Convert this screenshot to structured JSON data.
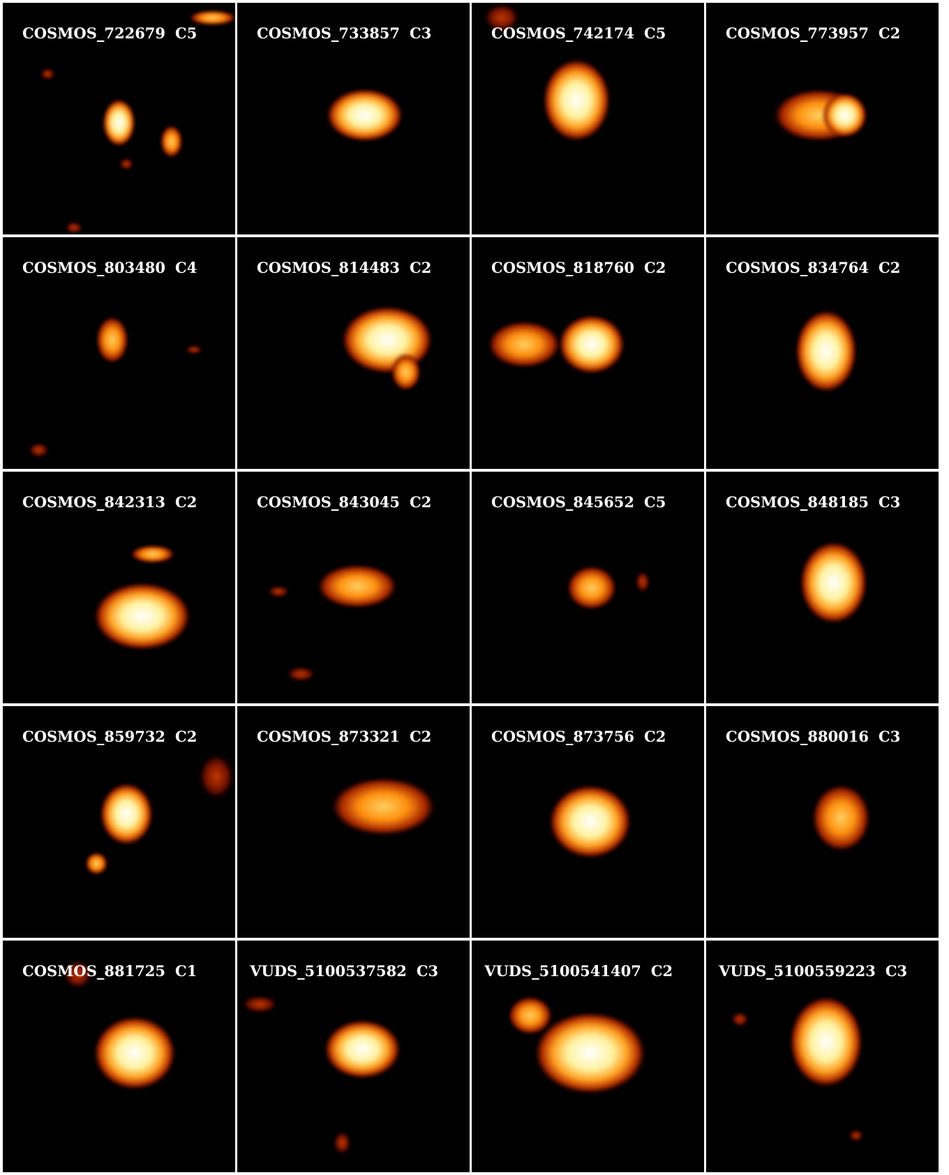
{
  "panels": [
    {
      "name": "COSMOS_722679",
      "class": "C5"
    },
    {
      "name": "COSMOS_733857",
      "class": "C3"
    },
    {
      "name": "COSMOS_742174",
      "class": "C5"
    },
    {
      "name": "COSMOS_773957",
      "class": "C2"
    },
    {
      "name": "COSMOS_803480",
      "class": "C4"
    },
    {
      "name": "COSMOS_814483",
      "class": "C2"
    },
    {
      "name": "COSMOS_818760",
      "class": "C2"
    },
    {
      "name": "COSMOS_834764",
      "class": "C2"
    },
    {
      "name": "COSMOS_842313",
      "class": "C2"
    },
    {
      "name": "COSMOS_843045",
      "class": "C2"
    },
    {
      "name": "COSMOS_845652",
      "class": "C5"
    },
    {
      "name": "COSMOS_848185",
      "class": "C3"
    },
    {
      "name": "COSMOS_859732",
      "class": "C2"
    },
    {
      "name": "COSMOS_873321",
      "class": "C2"
    },
    {
      "name": "COSMOS_873756",
      "class": "C2"
    },
    {
      "name": "COSMOS_880016",
      "class": "C3"
    },
    {
      "name": "COSMOS_881725",
      "class": "C1"
    },
    {
      "name": "VUDS_5100537582",
      "class": "C3"
    },
    {
      "name": "VUDS_5100541407",
      "class": "C2"
    },
    {
      "name": "VUDS_5100559223",
      "class": "C3"
    }
  ]
}
